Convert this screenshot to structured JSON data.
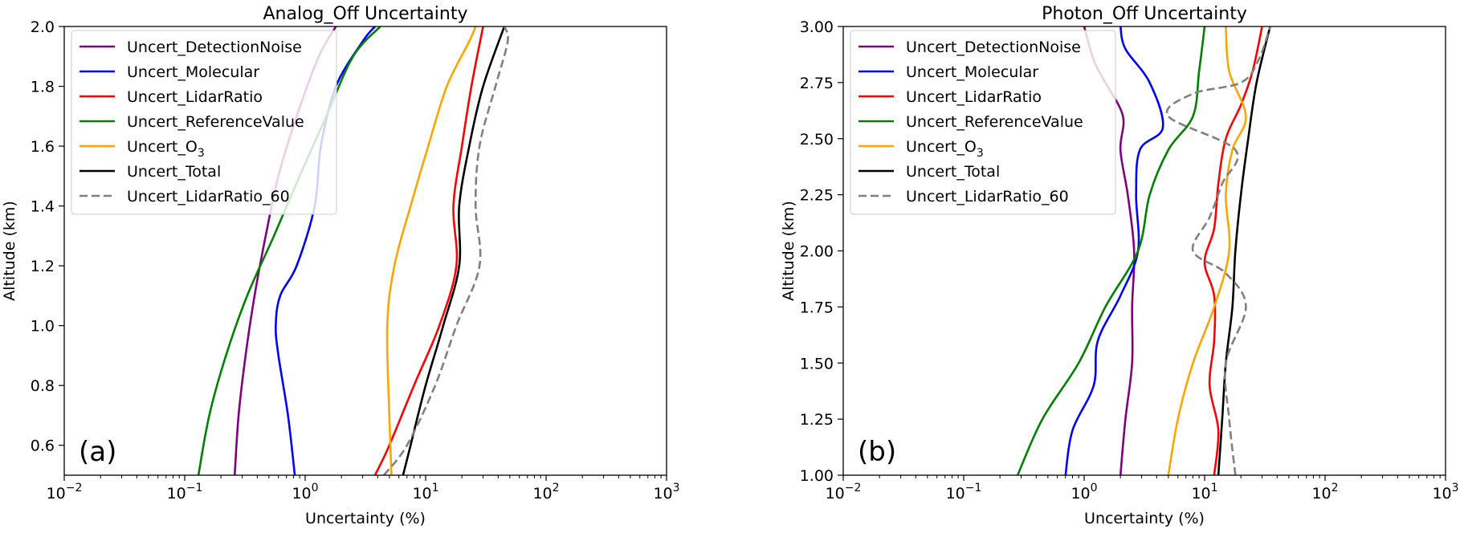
{
  "chart_data": [
    {
      "type": "line",
      "title": "Analog_Off Uncertainty",
      "xlabel": "Uncertainty (%)",
      "ylabel": "Altitude (km)",
      "xscale": "log",
      "xlim": [
        0.01,
        1000
      ],
      "ylim": [
        0.5,
        2.0
      ],
      "xticks": [
        {
          "base": "10",
          "exp": "−2"
        },
        {
          "base": "10",
          "exp": "−1"
        },
        {
          "base": "10",
          "exp": "0"
        },
        {
          "base": "10",
          "exp": "1"
        },
        {
          "base": "10",
          "exp": "2"
        },
        {
          "base": "10",
          "exp": "3"
        }
      ],
      "yticks": [
        "0.6",
        "0.8",
        "1.0",
        "1.2",
        "1.4",
        "1.6",
        "1.8",
        "2.0"
      ],
      "legend_position": "top-left",
      "panel_label": "(a)",
      "series": [
        {
          "name": "Uncert_DetectionNoise",
          "color": "#800080",
          "dash": "solid",
          "points": [
            [
              0.26,
              0.5
            ],
            [
              0.28,
              0.7
            ],
            [
              0.32,
              0.9
            ],
            [
              0.38,
              1.1
            ],
            [
              0.47,
              1.3
            ],
            [
              0.6,
              1.5
            ],
            [
              0.85,
              1.7
            ],
            [
              1.3,
              1.9
            ],
            [
              1.8,
              2.0
            ]
          ]
        },
        {
          "name": "Uncert_Molecular",
          "color": "#0000ff",
          "dash": "solid",
          "points": [
            [
              0.82,
              0.5
            ],
            [
              0.72,
              0.7
            ],
            [
              0.6,
              0.9
            ],
            [
              0.57,
              1.0
            ],
            [
              0.62,
              1.1
            ],
            [
              0.85,
              1.2
            ],
            [
              1.2,
              1.4
            ],
            [
              1.35,
              1.6
            ],
            [
              1.8,
              1.8
            ],
            [
              3.0,
              1.95
            ],
            [
              3.8,
              2.0
            ]
          ]
        },
        {
          "name": "Uncert_LidarRatio",
          "color": "#ff0000",
          "dash": "solid",
          "points": [
            [
              3.8,
              0.5
            ],
            [
              5.0,
              0.6
            ],
            [
              8.0,
              0.8
            ],
            [
              13,
              1.0
            ],
            [
              18,
              1.2
            ],
            [
              17,
              1.4
            ],
            [
              20,
              1.6
            ],
            [
              24,
              1.8
            ],
            [
              30,
              2.0
            ]
          ]
        },
        {
          "name": "Uncert_ReferenceValue",
          "color": "#008000",
          "dash": "solid",
          "points": [
            [
              0.13,
              0.5
            ],
            [
              0.16,
              0.7
            ],
            [
              0.22,
              0.9
            ],
            [
              0.33,
              1.1
            ],
            [
              0.55,
              1.3
            ],
            [
              0.9,
              1.5
            ],
            [
              1.5,
              1.7
            ],
            [
              2.5,
              1.9
            ],
            [
              4.2,
              2.0
            ]
          ]
        },
        {
          "name": "Uncert_O3",
          "color": "#ffa500",
          "dash": "solid",
          "points": [
            [
              5.2,
              0.5
            ],
            [
              5.0,
              0.7
            ],
            [
              4.8,
              1.0
            ],
            [
              5.5,
              1.2
            ],
            [
              7.5,
              1.4
            ],
            [
              10.5,
              1.6
            ],
            [
              15,
              1.8
            ],
            [
              23,
              1.95
            ],
            [
              26,
              2.0
            ]
          ]
        },
        {
          "name": "Uncert_Total",
          "color": "#000000",
          "dash": "solid",
          "points": [
            [
              6.5,
              0.5
            ],
            [
              7.5,
              0.6
            ],
            [
              10,
              0.8
            ],
            [
              14,
              1.0
            ],
            [
              19,
              1.2
            ],
            [
              19,
              1.4
            ],
            [
              23,
              1.6
            ],
            [
              30,
              1.8
            ],
            [
              45,
              2.0
            ]
          ]
        },
        {
          "name": "Uncert_LidarRatio_60",
          "color": "#808080",
          "dash": "dashed",
          "points": [
            [
              4.5,
              0.5
            ],
            [
              7.0,
              0.6
            ],
            [
              12,
              0.8
            ],
            [
              18,
              1.0
            ],
            [
              28,
              1.2
            ],
            [
              26,
              1.4
            ],
            [
              28,
              1.6
            ],
            [
              38,
              1.8
            ],
            [
              48,
              1.95
            ],
            [
              45,
              2.0
            ]
          ]
        }
      ]
    },
    {
      "type": "line",
      "title": "Photon_Off Uncertainty",
      "xlabel": "Uncertainty (%)",
      "ylabel": "Altitude (km)",
      "xscale": "log",
      "xlim": [
        0.01,
        1000
      ],
      "ylim": [
        1.0,
        3.0
      ],
      "xticks": [
        {
          "base": "10",
          "exp": "−2"
        },
        {
          "base": "10",
          "exp": "−1"
        },
        {
          "base": "10",
          "exp": "0"
        },
        {
          "base": "10",
          "exp": "1"
        },
        {
          "base": "10",
          "exp": "2"
        },
        {
          "base": "10",
          "exp": "3"
        }
      ],
      "yticks": [
        "1.00",
        "1.25",
        "1.50",
        "1.75",
        "2.00",
        "2.25",
        "2.50",
        "2.75",
        "3.00"
      ],
      "legend_position": "top-left",
      "panel_label": "(b)",
      "series": [
        {
          "name": "Uncert_DetectionNoise",
          "color": "#800080",
          "dash": "solid",
          "points": [
            [
              2.0,
              1.0
            ],
            [
              2.2,
              1.25
            ],
            [
              2.5,
              1.5
            ],
            [
              2.5,
              1.75
            ],
            [
              2.6,
              2.0
            ],
            [
              2.3,
              2.25
            ],
            [
              2.0,
              2.45
            ],
            [
              2.1,
              2.6
            ],
            [
              1.5,
              2.75
            ],
            [
              1.2,
              2.85
            ],
            [
              1.0,
              3.0
            ]
          ]
        },
        {
          "name": "Uncert_Molecular",
          "color": "#0000ff",
          "dash": "solid",
          "points": [
            [
              0.7,
              1.0
            ],
            [
              0.8,
              1.2
            ],
            [
              1.2,
              1.4
            ],
            [
              1.3,
              1.6
            ],
            [
              2.0,
              1.8
            ],
            [
              2.8,
              2.0
            ],
            [
              2.7,
              2.25
            ],
            [
              2.9,
              2.45
            ],
            [
              4.5,
              2.55
            ],
            [
              3.5,
              2.75
            ],
            [
              2.2,
              2.9
            ],
            [
              2.0,
              3.0
            ]
          ]
        },
        {
          "name": "Uncert_LidarRatio",
          "color": "#ff0000",
          "dash": "solid",
          "points": [
            [
              12,
              1.0
            ],
            [
              13,
              1.2
            ],
            [
              11,
              1.4
            ],
            [
              12,
              1.6
            ],
            [
              12,
              1.8
            ],
            [
              10,
              1.95
            ],
            [
              12,
              2.1
            ],
            [
              13,
              2.3
            ],
            [
              15,
              2.5
            ],
            [
              20,
              2.65
            ],
            [
              25,
              2.8
            ],
            [
              30,
              3.0
            ]
          ]
        },
        {
          "name": "Uncert_ReferenceValue",
          "color": "#008000",
          "dash": "solid",
          "points": [
            [
              0.28,
              1.0
            ],
            [
              0.45,
              1.25
            ],
            [
              0.9,
              1.5
            ],
            [
              1.5,
              1.75
            ],
            [
              2.8,
              2.0
            ],
            [
              3.5,
              2.25
            ],
            [
              5,
              2.45
            ],
            [
              8,
              2.6
            ],
            [
              9,
              2.8
            ],
            [
              10,
              3.0
            ]
          ]
        },
        {
          "name": "Uncert_O3",
          "color": "#ffa500",
          "dash": "solid",
          "points": [
            [
              5,
              1.0
            ],
            [
              6,
              1.25
            ],
            [
              8,
              1.5
            ],
            [
              12,
              1.75
            ],
            [
              16,
              2.0
            ],
            [
              15,
              2.25
            ],
            [
              17,
              2.45
            ],
            [
              22,
              2.6
            ],
            [
              16,
              2.8
            ],
            [
              15,
              3.0
            ]
          ]
        },
        {
          "name": "Uncert_Total",
          "color": "#000000",
          "dash": "solid",
          "points": [
            [
              13,
              1.0
            ],
            [
              14,
              1.25
            ],
            [
              15,
              1.5
            ],
            [
              17,
              1.75
            ],
            [
              18,
              2.0
            ],
            [
              20,
              2.25
            ],
            [
              23,
              2.5
            ],
            [
              27,
              2.75
            ],
            [
              35,
              3.0
            ]
          ]
        },
        {
          "name": "Uncert_LidarRatio_60",
          "color": "#808080",
          "dash": "dashed",
          "points": [
            [
              18,
              1.0
            ],
            [
              16,
              1.25
            ],
            [
              15,
              1.5
            ],
            [
              22,
              1.75
            ],
            [
              15,
              1.9
            ],
            [
              8,
              2.0
            ],
            [
              11,
              2.15
            ],
            [
              14,
              2.3
            ],
            [
              18,
              2.45
            ],
            [
              5,
              2.6
            ],
            [
              8,
              2.7
            ],
            [
              20,
              2.75
            ],
            [
              28,
              2.85
            ],
            [
              35,
              3.0
            ]
          ]
        }
      ]
    }
  ]
}
